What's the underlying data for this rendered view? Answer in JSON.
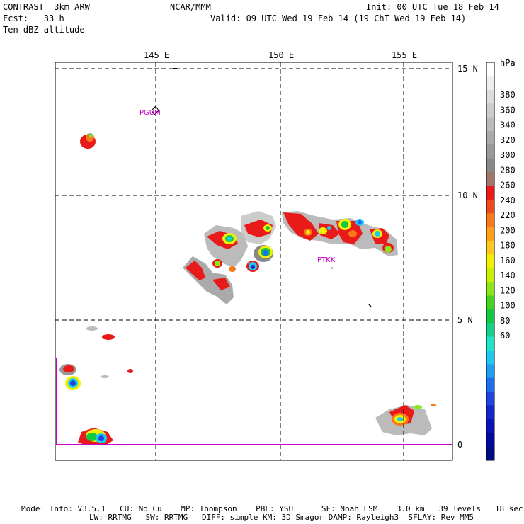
{
  "header": {
    "model": "CONTRAST  3km ARW",
    "org": "NCAR/MMM",
    "init": "Init: 00 UTC Tue 18 Feb 14",
    "fcst": "Fcst:   33 h",
    "valid": "Valid: 09 UTC Wed 19 Feb 14 (19 ChT Wed 19 Feb 14)",
    "field": "Ten-dBZ altitude"
  },
  "map": {
    "lon_labels": [
      "145 E",
      "150 E",
      "155 E"
    ],
    "lat_labels": [
      "15 N",
      "10 N",
      "5 N",
      "0"
    ],
    "stations": [
      "PGUM",
      "PTKK"
    ],
    "station_color": "#cc00cc"
  },
  "colorbar": {
    "unit": "hPa",
    "labels": [
      "380",
      "360",
      "340",
      "320",
      "300",
      "280",
      "260",
      "240",
      "220",
      "200",
      "180",
      "160",
      "140",
      "120",
      "100",
      "80",
      "60"
    ],
    "colors": [
      "#ffffff",
      "#eeeeee",
      "#dddddd",
      "#cccccc",
      "#bbbbbb",
      "#aaaaaa",
      "#999999",
      "#888888",
      "#a0766a",
      "#e81a1a",
      "#f04a1a",
      "#f8781a",
      "#ffa01a",
      "#ffc81e",
      "#f0f000",
      "#c8f000",
      "#8ce61e",
      "#46d21e",
      "#14c846",
      "#14d28c",
      "#1ee6c8",
      "#1ec8f0",
      "#1ea0f0",
      "#1e6ef0",
      "#1e46dc",
      "#1428c8",
      "#0a14b4",
      "#000aa0",
      "#000a82"
    ]
  },
  "footer": {
    "line1": "Model Info: V3.5.1   CU: No Cu    MP: Thompson    PBL: YSU      SF: Noah LSM    3.0 km   39 levels   18 sec",
    "line2": "LW: RRTMG   SW: RRTMG   DIFF: simple KM: 3D Smagor DAMP: Rayleigh3  SFLAY: Rev MM5"
  }
}
